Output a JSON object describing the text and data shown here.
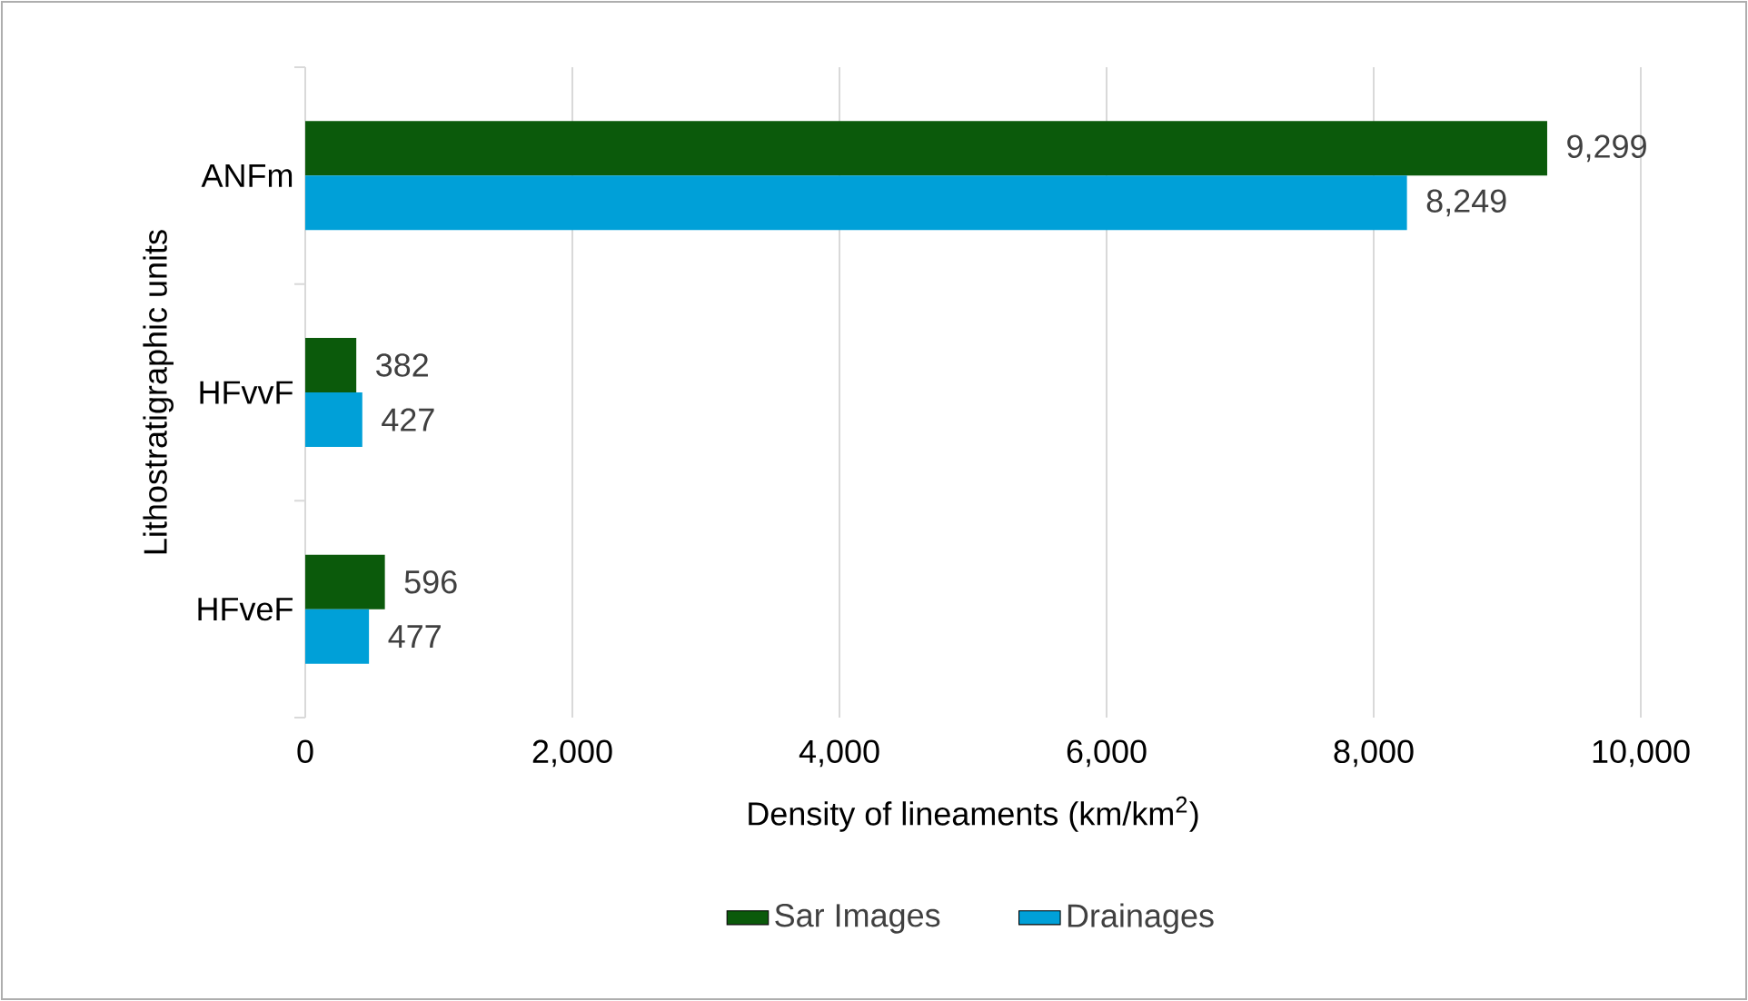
{
  "chart_data": {
    "type": "bar",
    "orientation": "horizontal",
    "categories": [
      "ANFm",
      "HFvvF",
      "HFveF"
    ],
    "series": [
      {
        "name": "Sar Images",
        "color": "#0b5a0b",
        "values": [
          9299,
          382,
          596
        ],
        "value_labels": [
          "9,299",
          "382",
          "596"
        ]
      },
      {
        "name": "Drainages",
        "color": "#00a0d8",
        "values": [
          8249,
          427,
          477
        ],
        "value_labels": [
          "8,249",
          "427",
          "477"
        ]
      }
    ],
    "xlabel": "Density of lineaments (km/km$^{2}$)",
    "ylabel": "Lithostratigraphic units",
    "xlim": [
      0,
      10000
    ],
    "xticks": [
      0,
      {
        "value": 2000,
        "label": "2,000"
      },
      {
        "value": 4000,
        "label": "4,000"
      },
      {
        "value": 6000,
        "label": "6,000"
      },
      {
        "value": 8000,
        "label": "8,000"
      },
      {
        "value": 10000,
        "label": "10,000"
      }
    ],
    "grid": "x",
    "legend": "bottom"
  }
}
